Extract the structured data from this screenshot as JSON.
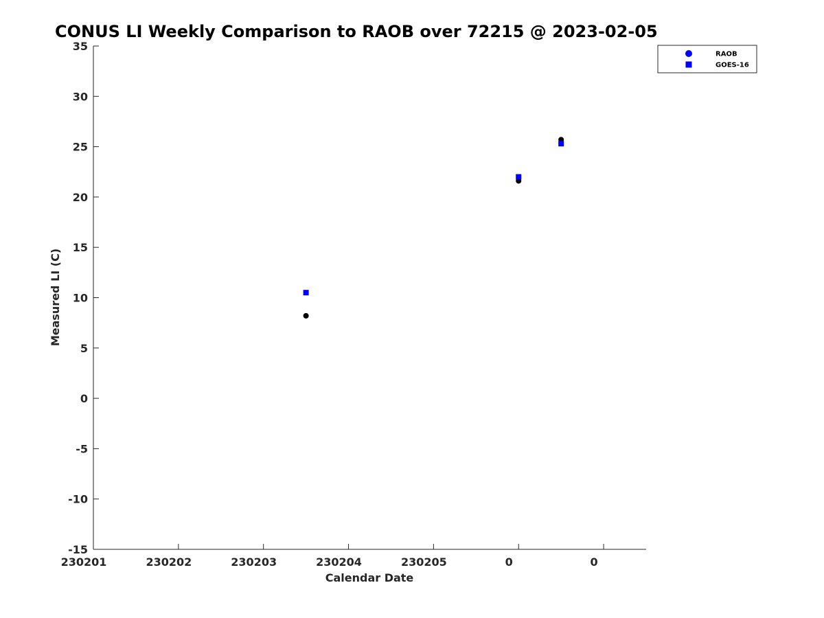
{
  "chart_data": {
    "type": "scatter",
    "title": "CONUS LI Weekly Comparison to RAOB over 72215 @ 2023-02-05",
    "xlabel": "Calendar Date",
    "ylabel": "Measured LI (C)",
    "xlim": [
      0,
      6.5
    ],
    "ylim": [
      -15,
      35
    ],
    "x_ticks": [
      0,
      1,
      2,
      3,
      4,
      5,
      6
    ],
    "x_tick_labels": [
      "230201",
      "230202",
      "230203",
      "230204",
      "230205",
      "0",
      "0"
    ],
    "y_ticks": [
      -15,
      -10,
      -5,
      0,
      5,
      10,
      15,
      20,
      25,
      30,
      35
    ],
    "y_tick_labels": [
      "-15",
      "-10",
      "-5",
      "0",
      "5",
      "10",
      "15",
      "20",
      "25",
      "30",
      "35"
    ],
    "legend_position": "top-right (outside plot)",
    "series": [
      {
        "name": "RAOB",
        "marker": "circle",
        "legend_color": "#0000ff",
        "point_color": "#000000",
        "points": [
          [
            2.5,
            8.2
          ],
          [
            5.0,
            21.6
          ],
          [
            5.5,
            25.7
          ]
        ]
      },
      {
        "name": "GOES-16",
        "marker": "square",
        "legend_color": "#0000ff",
        "point_color": "#0000ff",
        "points": [
          [
            2.5,
            10.5
          ],
          [
            5.0,
            22.0
          ],
          [
            5.5,
            25.3
          ]
        ]
      }
    ]
  }
}
